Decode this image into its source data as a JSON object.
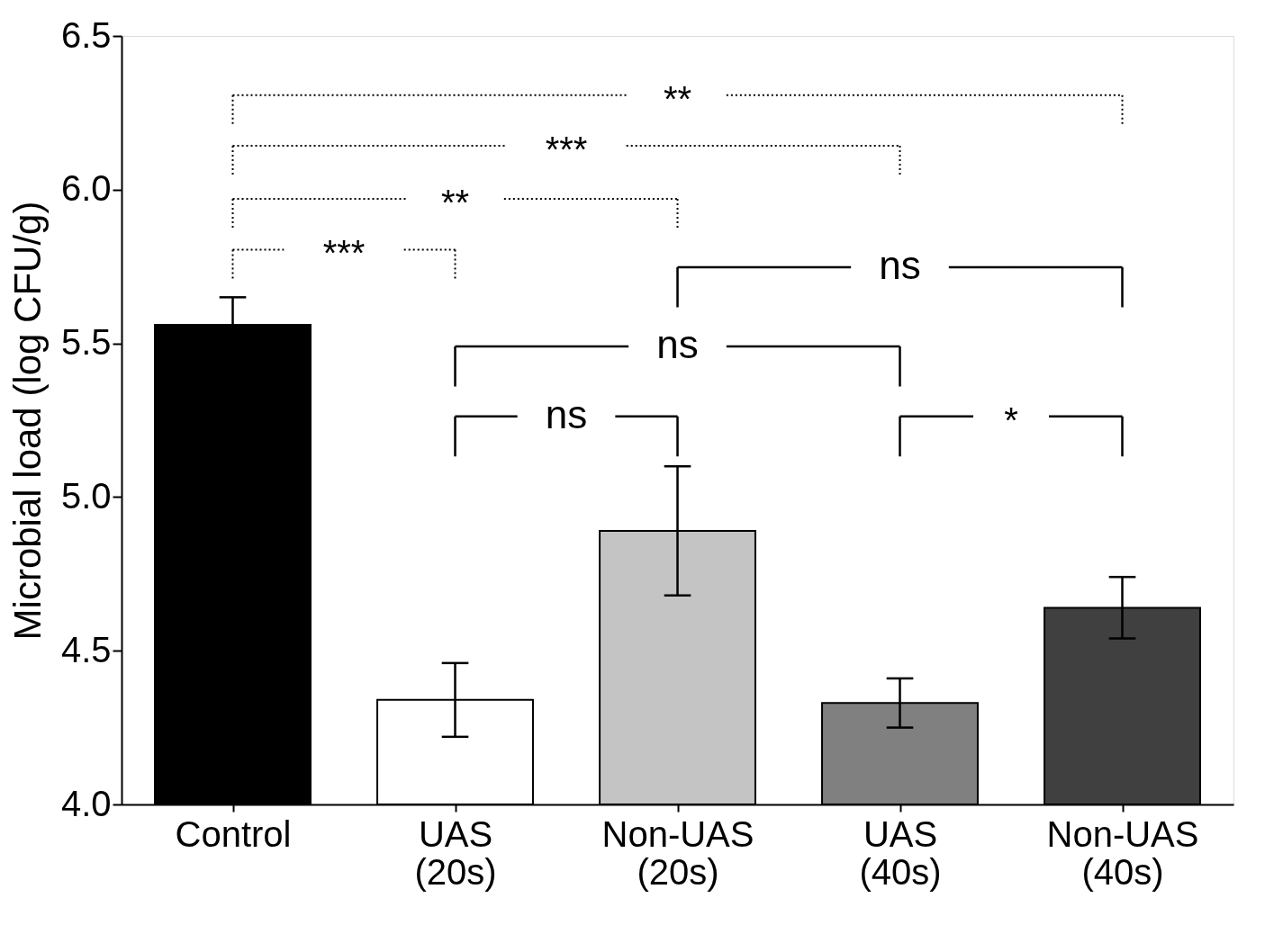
{
  "chart_data": {
    "type": "bar",
    "ylabel": "Microbial load (log CFU/g)",
    "categories": [
      "Control",
      "UAS (20s)",
      "Non-UAS (20s)",
      "UAS (40s)",
      "Non-UAS (40s)"
    ],
    "values": [
      5.56,
      4.34,
      4.89,
      4.33,
      4.64
    ],
    "errors": [
      0.09,
      0.12,
      0.21,
      0.08,
      0.1
    ],
    "colors": [
      "#000000",
      "#ffffff",
      "#c4c4c4",
      "#808080",
      "#404040"
    ],
    "ylim": [
      4.0,
      6.5
    ],
    "yticks": [
      {
        "value": 4,
        "label": "4.0"
      },
      4.5,
      {
        "value": 5,
        "label": "5.0"
      },
      5.5,
      {
        "value": 6,
        "label": "6.0"
      },
      6.5
    ],
    "grid": false,
    "annotations": [
      "**",
      "***",
      "**",
      "***",
      "ns",
      "ns",
      "ns",
      "*"
    ]
  }
}
